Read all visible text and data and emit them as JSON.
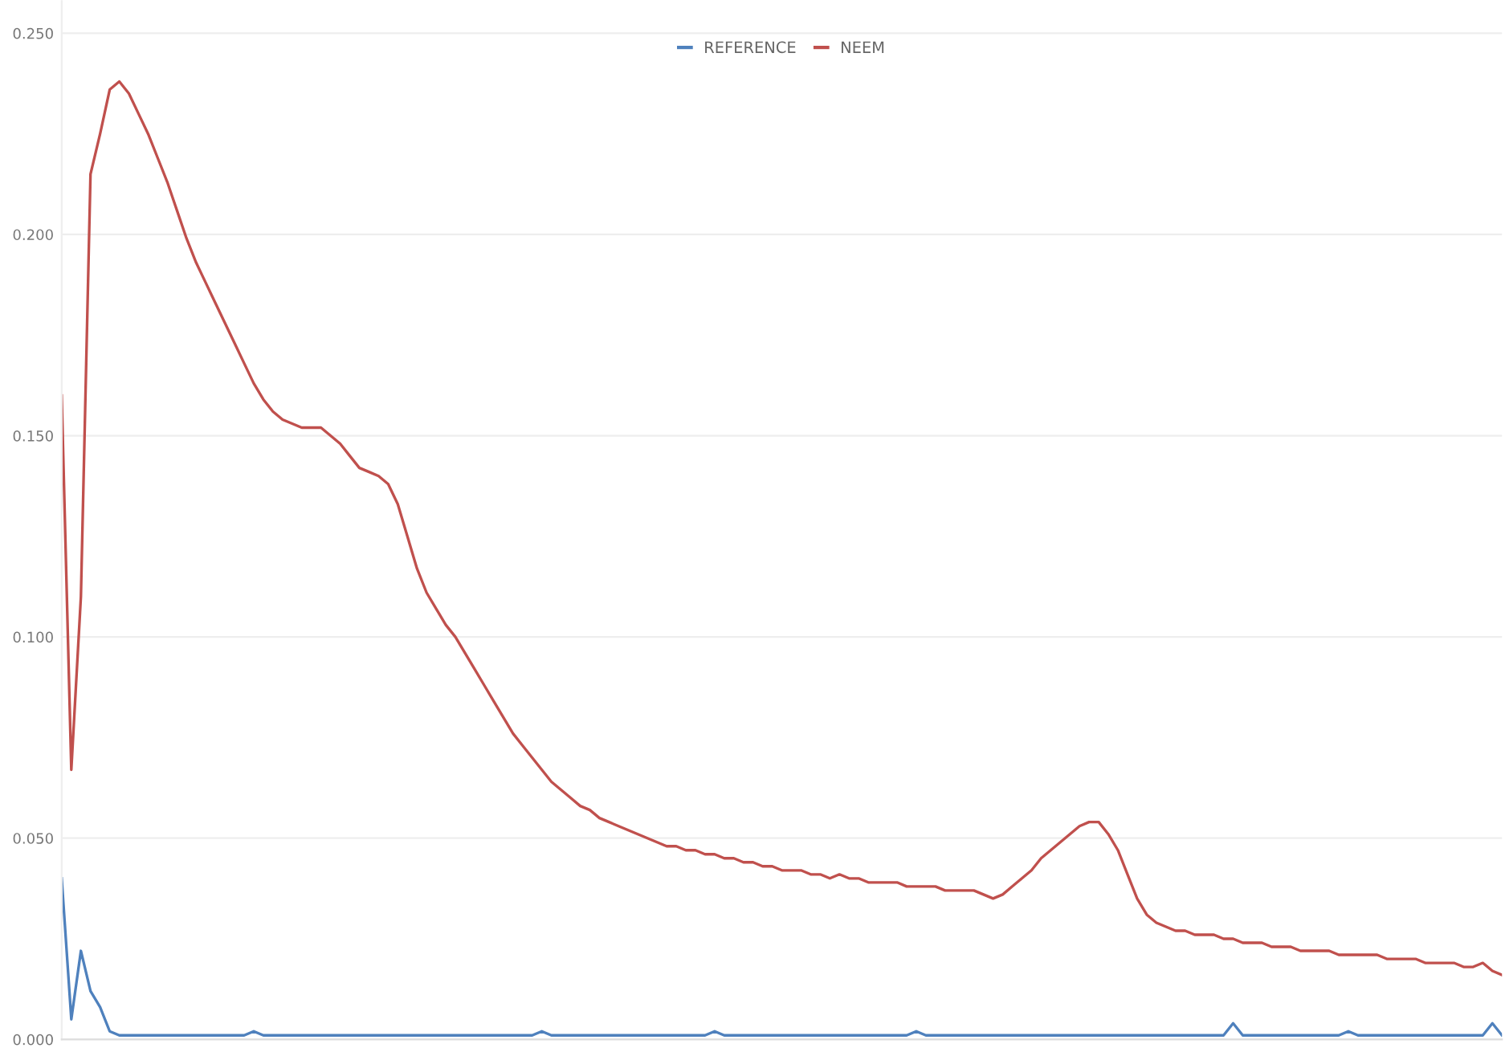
{
  "chart_data": {
    "type": "line",
    "categories": [
      null,
      null,
      null,
      null,
      null,
      null,
      null,
      null,
      null,
      null,
      null,
      null,
      null,
      null,
      null,
      null,
      null,
      null,
      null,
      null,
      null,
      null,
      null,
      null,
      null,
      null,
      null,
      null,
      null,
      null,
      null,
      null,
      null,
      null,
      null,
      null,
      null,
      null,
      null,
      null,
      null,
      null,
      null,
      null,
      null,
      null,
      null,
      null,
      null,
      null,
      null,
      null,
      null,
      null,
      null,
      null,
      null,
      null,
      null,
      null,
      null,
      null,
      null,
      null,
      null,
      null,
      null,
      null,
      null,
      null,
      null,
      null,
      null,
      null,
      null,
      null,
      null,
      null,
      null,
      null,
      null,
      null,
      null,
      null,
      null,
      null,
      null,
      null,
      null,
      null,
      null,
      null,
      null,
      null,
      null,
      null,
      null,
      null,
      null,
      null,
      null,
      null,
      null,
      null,
      null,
      null,
      null,
      null,
      null,
      null,
      null,
      null,
      null,
      null,
      null,
      null,
      null,
      null,
      null,
      null,
      null,
      null,
      null,
      null,
      null,
      null,
      null,
      null,
      null,
      null,
      null,
      null,
      null,
      null,
      null,
      null,
      null,
      null,
      null,
      null,
      null,
      null,
      null,
      null,
      null,
      null,
      null,
      null,
      null,
      null,
      null
    ],
    "series": [
      {
        "name": "REFERENCE",
        "color": "#4f81bd",
        "values": [
          0.04,
          0.005,
          0.022,
          0.012,
          0.008,
          0.002,
          0.001,
          0.001,
          0.001,
          0.001,
          0.001,
          0.001,
          0.001,
          0.001,
          0.001,
          0.001,
          0.001,
          0.001,
          0.001,
          0.001,
          0.002,
          0.001,
          0.001,
          0.001,
          0.001,
          0.001,
          0.001,
          0.001,
          0.001,
          0.001,
          0.001,
          0.001,
          0.001,
          0.001,
          0.001,
          0.001,
          0.001,
          0.001,
          0.001,
          0.001,
          0.001,
          0.001,
          0.001,
          0.001,
          0.001,
          0.001,
          0.001,
          0.001,
          0.001,
          0.001,
          0.002,
          0.001,
          0.001,
          0.001,
          0.001,
          0.001,
          0.001,
          0.001,
          0.001,
          0.001,
          0.001,
          0.001,
          0.001,
          0.001,
          0.001,
          0.001,
          0.001,
          0.001,
          0.002,
          0.001,
          0.001,
          0.001,
          0.001,
          0.001,
          0.001,
          0.001,
          0.001,
          0.001,
          0.001,
          0.001,
          0.001,
          0.001,
          0.001,
          0.001,
          0.001,
          0.001,
          0.001,
          0.001,
          0.001,
          0.002,
          0.001,
          0.001,
          0.001,
          0.001,
          0.001,
          0.001,
          0.001,
          0.001,
          0.001,
          0.001,
          0.001,
          0.001,
          0.001,
          0.001,
          0.001,
          0.001,
          0.001,
          0.001,
          0.001,
          0.001,
          0.001,
          0.001,
          0.001,
          0.001,
          0.001,
          0.001,
          0.001,
          0.001,
          0.001,
          0.001,
          0.001,
          0.001,
          0.004,
          0.001,
          0.001,
          0.001,
          0.001,
          0.001,
          0.001,
          0.001,
          0.001,
          0.001,
          0.001,
          0.001,
          0.002,
          0.001,
          0.001,
          0.001,
          0.001,
          0.001,
          0.001,
          0.001,
          0.001,
          0.001,
          0.001,
          0.001,
          0.001,
          0.001,
          0.001,
          0.004,
          0.001
        ]
      },
      {
        "name": "NEEM",
        "color": "#c0504d",
        "values": [
          0.16,
          0.067,
          0.11,
          0.215,
          0.225,
          0.236,
          0.238,
          0.235,
          0.23,
          0.225,
          0.219,
          0.213,
          0.206,
          0.199,
          0.193,
          0.188,
          0.183,
          0.178,
          0.173,
          0.168,
          0.163,
          0.159,
          0.156,
          0.154,
          0.153,
          0.152,
          0.152,
          0.152,
          0.15,
          0.148,
          0.145,
          0.142,
          0.141,
          0.14,
          0.138,
          0.133,
          0.125,
          0.117,
          0.111,
          0.107,
          0.103,
          0.1,
          0.096,
          0.092,
          0.088,
          0.084,
          0.08,
          0.076,
          0.073,
          0.07,
          0.067,
          0.064,
          0.062,
          0.06,
          0.058,
          0.057,
          0.055,
          0.054,
          0.053,
          0.052,
          0.051,
          0.05,
          0.049,
          0.048,
          0.048,
          0.047,
          0.047,
          0.046,
          0.046,
          0.045,
          0.045,
          0.044,
          0.044,
          0.043,
          0.043,
          0.042,
          0.042,
          0.042,
          0.041,
          0.041,
          0.04,
          0.041,
          0.04,
          0.04,
          0.039,
          0.039,
          0.039,
          0.039,
          0.038,
          0.038,
          0.038,
          0.038,
          0.037,
          0.037,
          0.037,
          0.037,
          0.036,
          0.035,
          0.036,
          0.038,
          0.04,
          0.042,
          0.045,
          0.047,
          0.049,
          0.051,
          0.053,
          0.054,
          0.054,
          0.051,
          0.047,
          0.041,
          0.035,
          0.031,
          0.029,
          0.028,
          0.027,
          0.027,
          0.026,
          0.026,
          0.026,
          0.025,
          0.025,
          0.024,
          0.024,
          0.024,
          0.023,
          0.023,
          0.023,
          0.022,
          0.022,
          0.022,
          0.022,
          0.021,
          0.021,
          0.021,
          0.021,
          0.021,
          0.02,
          0.02,
          0.02,
          0.02,
          0.019,
          0.019,
          0.019,
          0.019,
          0.018,
          0.018,
          0.019,
          0.017,
          0.016
        ]
      }
    ],
    "ylim": [
      0,
      0.258
    ],
    "yticks": [
      {
        "value": 0,
        "label": "0.000"
      },
      {
        "value": 0.05,
        "label": "0.050"
      },
      {
        "value": 0.1,
        "label": "0.100"
      },
      {
        "value": 0.15,
        "label": "0.150"
      },
      {
        "value": 0.2,
        "label": "0.200"
      },
      {
        "value": 0.25,
        "label": "0.250"
      }
    ],
    "grid": "y",
    "legend": "top",
    "tick_labels": "y",
    "marker": "none",
    "line_style": "solid"
  }
}
